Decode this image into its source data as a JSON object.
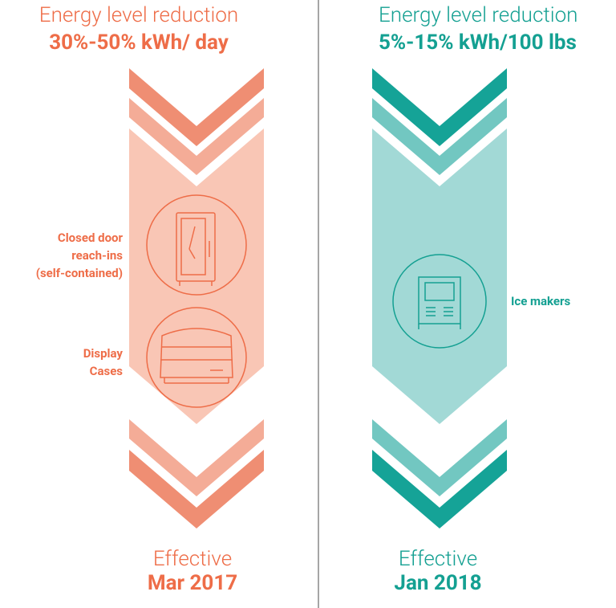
{
  "columns": [
    {
      "heading": "Energy level reduction",
      "reduction": "30%-50% kWh/ day",
      "items": [
        [
          "Closed door",
          "reach-ins",
          "(self-contained)"
        ],
        [
          "Display",
          "Cases"
        ]
      ],
      "effective_label": "Effective",
      "effective_date": "Mar 2017"
    },
    {
      "heading": "Energy level reduction",
      "reduction": "5%-15% kWh/100 lbs",
      "items": [
        [
          "Ice makers"
        ]
      ],
      "effective_label": "Effective",
      "effective_date": "Jan 2018"
    }
  ]
}
